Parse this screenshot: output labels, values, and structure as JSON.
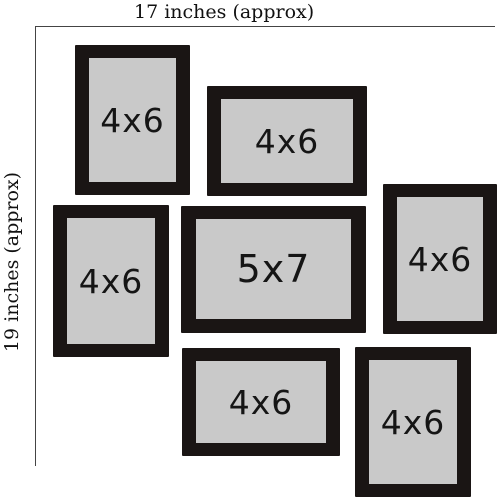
{
  "dimensions": {
    "width_label": "17 inches (approx)",
    "height_label": "19 inches (approx)"
  },
  "frames": [
    {
      "size": "4x6"
    },
    {
      "size": "4x6"
    },
    {
      "size": "4x6"
    },
    {
      "size": "5x7"
    },
    {
      "size": "4x6"
    },
    {
      "size": "4x6"
    },
    {
      "size": "4x6"
    }
  ],
  "colors": {
    "frame": "#1a1514",
    "mat": "#c9c9c9",
    "background": "#ffffff",
    "text": "#151515"
  }
}
